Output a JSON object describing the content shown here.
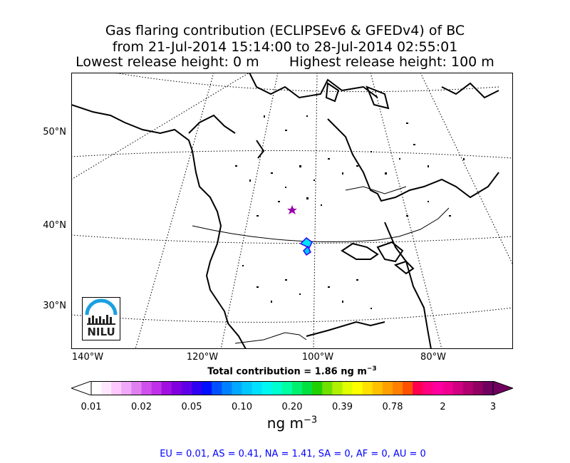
{
  "title": {
    "line1": "Gas flaring contribution (ECLIPSEv6 & GFEDv4) of BC",
    "line2": "from 21-Jul-2014 15:14:00 to 28-Jul-2014 02:55:01",
    "lowest": "Lowest release height: 0 m",
    "highest": "Highest release height: 100 m"
  },
  "map": {
    "lat_labels": [
      "50°N",
      "40°N",
      "30°N"
    ],
    "lon_labels": [
      "140°W",
      "120°W",
      "100°W",
      "80°W"
    ],
    "logo_text": "NILU",
    "marker": {
      "name": "release-site-star",
      "color": "#9900aa"
    }
  },
  "total_contribution": {
    "label": "Total contribution = 1.86 ng m",
    "sup": "−3"
  },
  "colorbar": {
    "tick_labels": [
      "0.01",
      "0.02",
      "0.05",
      "0.10",
      "0.20",
      "0.39",
      "0.78",
      "2",
      "3"
    ],
    "colors": [
      "#ffffff",
      "#ffe8ff",
      "#ffc8ff",
      "#f0a8f8",
      "#e080f0",
      "#d050ee",
      "#c030e8",
      "#a010e0",
      "#8000e0",
      "#6000e8",
      "#3000f0",
      "#0010ff",
      "#0050ff",
      "#0080ff",
      "#00a8ff",
      "#00c8ff",
      "#00e0ff",
      "#00f8f0",
      "#00ffd0",
      "#00ffa0",
      "#00f070",
      "#00e040",
      "#20d000",
      "#70e000",
      "#b0f000",
      "#e0ff00",
      "#ffff00",
      "#ffe000",
      "#ffc000",
      "#ffa000",
      "#ff8000",
      "#ff5000",
      "#ff0050",
      "#ff0080",
      "#ff00a0",
      "#f00090",
      "#d00080",
      "#b00070",
      "#900060",
      "#700060"
    ],
    "unit": "ng m",
    "unit_sup": "−3"
  },
  "footer": "EU = 0.01,  AS = 0.41,  NA = 1.41,  SA = 0,  AF = 0,  AU = 0"
}
